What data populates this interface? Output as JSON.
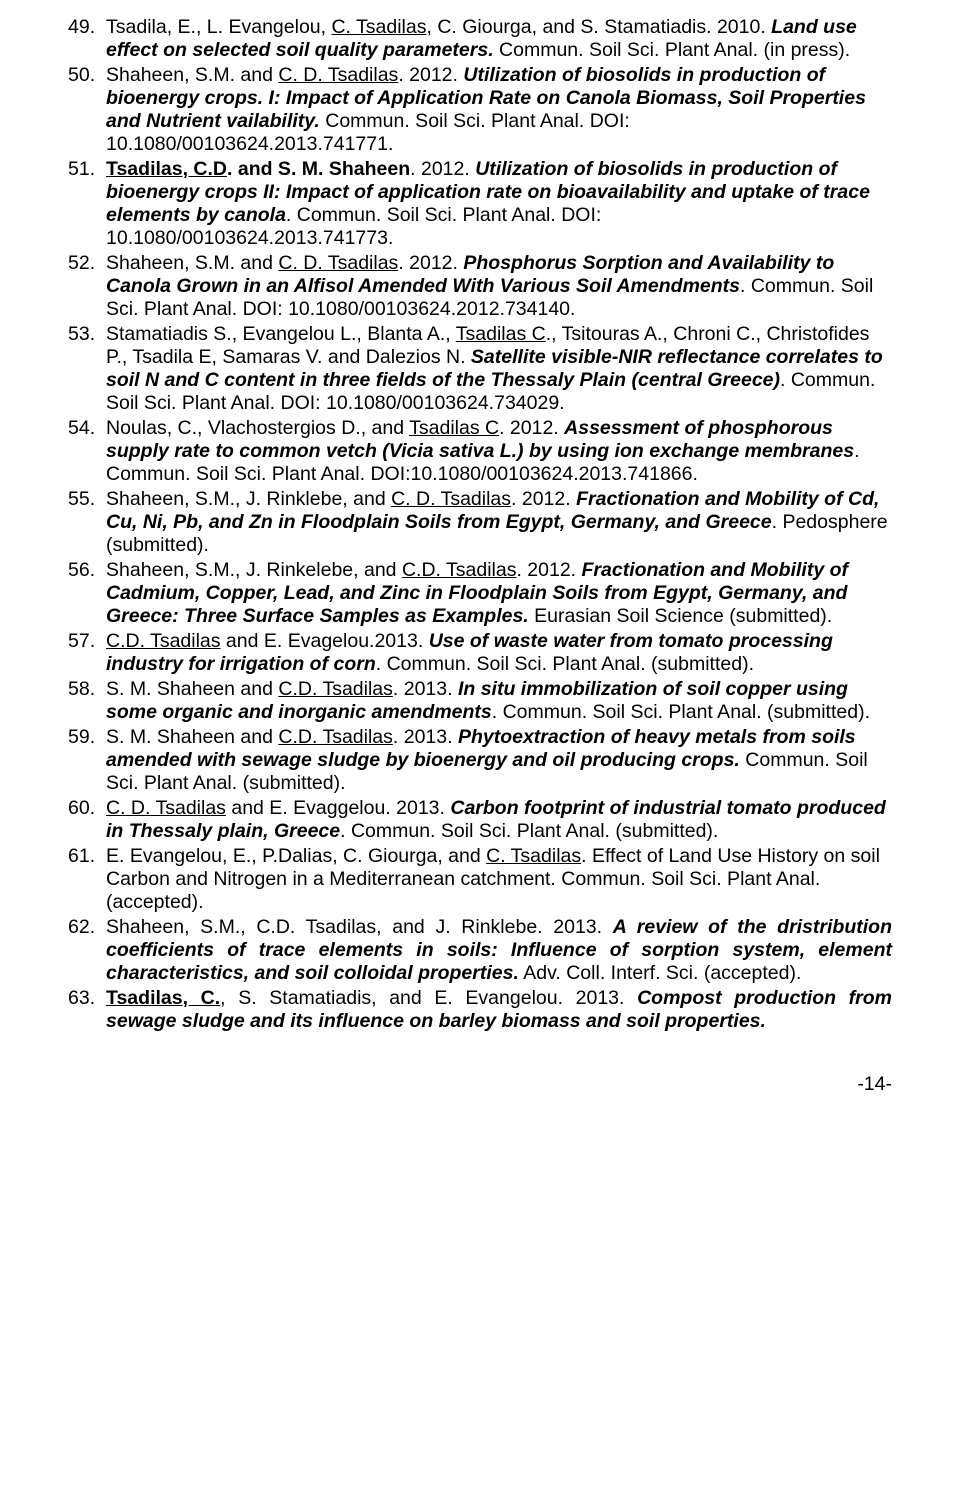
{
  "page_number": "-14-",
  "font": {
    "family": "Arial",
    "size_pt": 14,
    "line_height": 1.18,
    "color": "#000000"
  },
  "refs": [
    {
      "n": 49,
      "justify": false,
      "html": "Tsadila, E., L. Evangelou, <span class='u'>C. Tsadilas</span>, C. Giourga, and S. Stamatiadis. 2010. <span class='bi'>Land use effect on selected soil quality parameters.</span> Commun. Soil Sci. Plant Anal. (in press)."
    },
    {
      "n": 50,
      "justify": false,
      "html": "Shaheen, S.M. and <span class='u'>C. D. Tsadilas</span>. 2012. <span class='bi'>Utilization of biosolids in production of bioenergy crops. I: Impact of Application Rate on Canola Biomass, Soil Properties and Nutrient vailability.</span> Commun. Soil Sci. Plant Anal. DOI: 10.1080/00103624.2013.741771."
    },
    {
      "n": 51,
      "justify": false,
      "html": "<span class='u b'>Tsadilas, C.D</span><span class='b'>. and S. M. Shaheen</span>. 2012. <span class='bi'>Utilization of biosolids in production of bioenergy crops II: Impact of application rate on bioavailability and uptake of trace elements by canola</span>. Commun. Soil Sci. Plant Anal. DOI: 10.1080/00103624.2013.741773."
    },
    {
      "n": 52,
      "justify": false,
      "html": "Shaheen, S.M. and <span class='u'>C. D. Tsadilas</span>. 2012. <span class='bi'>Phosphorus Sorption and Availability to Canola Grown in an Alfisol Amended With Various Soil Amendments</span>. Commun. Soil Sci. Plant Anal. DOI: 10.1080/00103624.2012.734140."
    },
    {
      "n": 53,
      "justify": false,
      "html": "Stamatiadis S., Evangelou L., Blanta A., <span class='u'>Tsadilas C</span>., Tsitouras A., Chroni C., Christofides P., Tsadila E, Samaras V. and Dalezios N. <span class='bi'>Satellite visible-NIR reflectance correlates to soil N and C content in three fields of the Thessaly Plain (central Greece)</span>. Commun. Soil Sci. Plant Anal. DOI: 10.1080/00103624.734029."
    },
    {
      "n": 54,
      "justify": false,
      "html": "Noulas, C., Vlachostergios D., and <span class='u'>Tsadilas C</span>. 2012. <span class='bi'>Assessment of phosphorous supply rate to common vetch (Vicia sativa L.) by using ion exchange membranes</span>. Commun. Soil Sci. Plant Anal. DOI:10.1080/00103624.2013.741866."
    },
    {
      "n": 55,
      "justify": false,
      "html": "Shaheen, S.M., J. Rinklebe, and <span class='u'>C. D. Tsadilas</span>. 2012. <span class='bi'>Fractionation and Mobility of Cd, Cu, Ni, Pb, and Zn in Floodplain Soils from Egypt, Germany, and Greece</span>. Pedosphere (submitted)."
    },
    {
      "n": 56,
      "justify": false,
      "html": "Shaheen, S.M., J. Rinkelebe, and <span class='u'>C.D. Tsadilas</span>. 2012. <span class='bi'>Fractionation and Mobility of Cadmium, Copper, Lead, and Zinc in Floodplain Soils from Egypt, Germany, and Greece: Three Surface Samples as Examples.</span> Eurasian Soil Science (submitted)."
    },
    {
      "n": 57,
      "justify": false,
      "html": "<span class='u'>C.D. Tsadilas</span> and E. Evagelou.2013. <span class='bi'>Use of waste water from tomato processing industry for irrigation of corn</span>. Commun. Soil Sci. Plant Anal. (submitted)."
    },
    {
      "n": 58,
      "justify": false,
      "html": "S. M. Shaheen and <span class='u'>C.D. Tsadilas</span>. 2013. <span class='bi'>In situ immobilization of soil copper using some organic and inorganic amendments</span>. Commun. Soil Sci. Plant Anal. (submitted)."
    },
    {
      "n": 59,
      "justify": false,
      "html": "S. M. Shaheen and <span class='u'>C.D. Tsadilas</span>. 2013. <span class='bi'>Phytoextraction of heavy metals from soils amended with sewage sludge by bioenergy and oil producing crops.</span> Commun. Soil Sci. Plant Anal. (submitted)."
    },
    {
      "n": 60,
      "justify": false,
      "html": "<span class='u'>C. D. Tsadilas</span> and E. Evaggelou. 2013. <span class='bi'>Carbon footprint of industrial tomato produced in Thessaly plain, Greece</span>. Commun. Soil Sci. Plant Anal. (submitted)."
    },
    {
      "n": 61,
      "justify": false,
      "html": "E. Evangelou, E., P.Dalias, C. Giourga, and <span class='u'>C. Tsadilas</span>. Effect of Land Use History on soil Carbon and Nitrogen in a Mediterranean catchment. Commun. Soil Sci. Plant Anal. (accepted)."
    },
    {
      "n": 62,
      "justify": true,
      "html": "Shaheen, S.M., C.D. Tsadilas, and J. Rinklebe. 2013. <span class='bi'>A review of the dristribution coefficients of trace elements in soils: Influence of sorption system, element characteristics, and soil colloidal properties.</span> Adv. Coll. Interf. Sci. (accepted)."
    },
    {
      "n": 63,
      "justify": true,
      "html": "<span class='u b'>Tsadilas, C.</span>, S. Stamatiadis, and E. Evangelou. 2013. <span class='bi'>Compost production from sewage sludge and its influence on barley biomass and soil properties.</span>"
    }
  ]
}
